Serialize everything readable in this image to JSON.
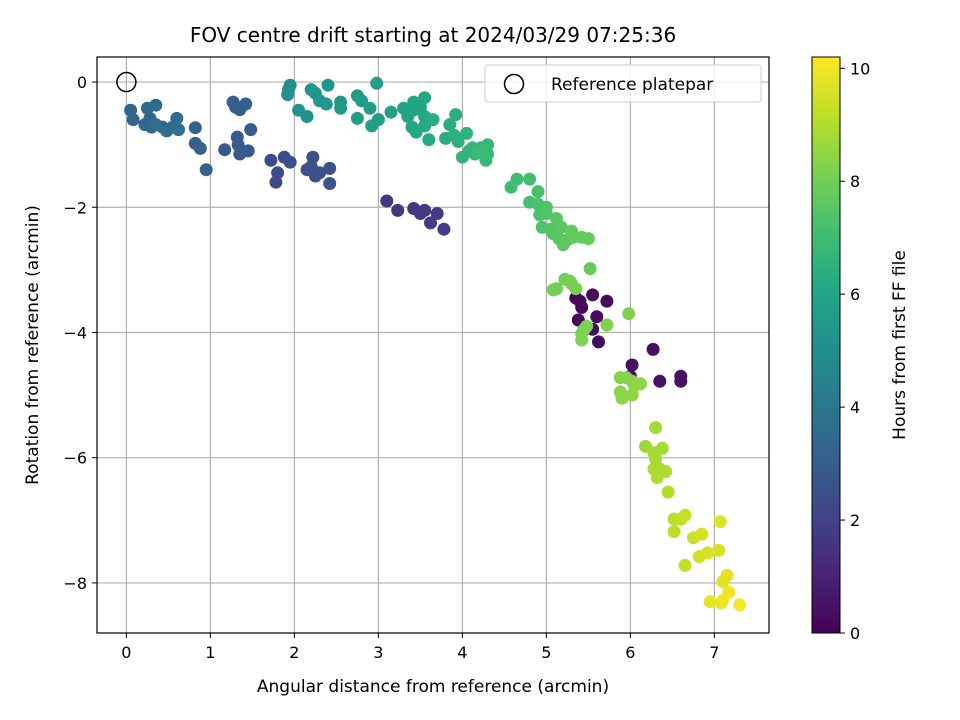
{
  "chart_data": {
    "type": "scatter",
    "title": "FOV centre drift starting at 2024/03/29 07:25:36",
    "xlabel": "Angular distance from reference (arcmin)",
    "ylabel": "Rotation from reference (arcmin)",
    "colorbar_label": "Hours from first FF file",
    "xlim": [
      -0.35,
      7.65
    ],
    "ylim": [
      -8.8,
      0.4
    ],
    "xticks": [
      0,
      1,
      2,
      3,
      4,
      5,
      6,
      7
    ],
    "yticks": [
      0,
      -2,
      -4,
      -6,
      -8
    ],
    "colorbar_ticks": [
      0,
      2,
      4,
      6,
      8,
      10
    ],
    "colorbar_range": [
      0,
      10.2
    ],
    "colormap": "viridis",
    "grid": true,
    "legend": {
      "label": "Reference platepar",
      "placement": "top-right"
    },
    "reference_point": {
      "x": 0.0,
      "y": 0.0
    },
    "points": [
      {
        "x": 5.4,
        "y": -3.5,
        "h": 0.1
      },
      {
        "x": 5.35,
        "y": -3.45,
        "h": 0.15
      },
      {
        "x": 5.42,
        "y": -3.6,
        "h": 0.2
      },
      {
        "x": 5.38,
        "y": -3.8,
        "h": 0.2
      },
      {
        "x": 5.55,
        "y": -3.4,
        "h": 0.25
      },
      {
        "x": 5.6,
        "y": -3.75,
        "h": 0.3
      },
      {
        "x": 5.72,
        "y": -3.5,
        "h": 0.3
      },
      {
        "x": 5.55,
        "y": -3.95,
        "h": 0.35
      },
      {
        "x": 5.62,
        "y": -4.15,
        "h": 0.35
      },
      {
        "x": 6.02,
        "y": -4.52,
        "h": 0.4
      },
      {
        "x": 6.27,
        "y": -4.27,
        "h": 0.4
      },
      {
        "x": 6.35,
        "y": -4.78,
        "h": 0.45
      },
      {
        "x": 6.6,
        "y": -4.7,
        "h": 0.45
      },
      {
        "x": 6.6,
        "y": -4.78,
        "h": 0.5
      },
      {
        "x": 6.0,
        "y": -4.7,
        "h": 0.5
      },
      {
        "x": 3.1,
        "y": -1.9,
        "h": 1.6
      },
      {
        "x": 3.23,
        "y": -2.05,
        "h": 1.65
      },
      {
        "x": 3.42,
        "y": -2.02,
        "h": 1.7
      },
      {
        "x": 3.5,
        "y": -2.1,
        "h": 1.7
      },
      {
        "x": 3.55,
        "y": -2.05,
        "h": 1.75
      },
      {
        "x": 3.62,
        "y": -2.25,
        "h": 1.8
      },
      {
        "x": 3.7,
        "y": -2.1,
        "h": 1.8
      },
      {
        "x": 3.78,
        "y": -2.35,
        "h": 1.85
      },
      {
        "x": 1.72,
        "y": -1.25,
        "h": 2.3
      },
      {
        "x": 1.8,
        "y": -1.45,
        "h": 2.3
      },
      {
        "x": 1.78,
        "y": -1.6,
        "h": 2.35
      },
      {
        "x": 1.88,
        "y": -1.2,
        "h": 2.35
      },
      {
        "x": 1.95,
        "y": -1.28,
        "h": 2.4
      },
      {
        "x": 2.15,
        "y": -1.4,
        "h": 2.4
      },
      {
        "x": 2.22,
        "y": -1.2,
        "h": 2.45
      },
      {
        "x": 2.25,
        "y": -1.5,
        "h": 2.45
      },
      {
        "x": 2.3,
        "y": -1.45,
        "h": 2.5
      },
      {
        "x": 2.42,
        "y": -1.38,
        "h": 2.5
      },
      {
        "x": 2.42,
        "y": -1.62,
        "h": 2.55
      },
      {
        "x": 2.2,
        "y": -1.35,
        "h": 2.55
      },
      {
        "x": 1.17,
        "y": -1.08,
        "h": 2.8
      },
      {
        "x": 1.32,
        "y": -0.88,
        "h": 2.85
      },
      {
        "x": 1.35,
        "y": -1.15,
        "h": 2.9
      },
      {
        "x": 1.45,
        "y": -1.1,
        "h": 2.9
      },
      {
        "x": 1.48,
        "y": -0.76,
        "h": 2.95
      },
      {
        "x": 1.33,
        "y": -1.0,
        "h": 2.95
      },
      {
        "x": 1.3,
        "y": -0.4,
        "h": 3.0
      },
      {
        "x": 1.27,
        "y": -0.32,
        "h": 3.0
      },
      {
        "x": 1.42,
        "y": -0.35,
        "h": 3.05
      },
      {
        "x": 1.35,
        "y": -0.44,
        "h": 3.05
      },
      {
        "x": 0.82,
        "y": -0.98,
        "h": 3.1
      },
      {
        "x": 0.88,
        "y": -1.06,
        "h": 3.15
      },
      {
        "x": 0.95,
        "y": -1.4,
        "h": 3.2
      },
      {
        "x": 0.82,
        "y": -0.73,
        "h": 3.25
      },
      {
        "x": 0.05,
        "y": -0.45,
        "h": 3.3
      },
      {
        "x": 0.08,
        "y": -0.6,
        "h": 3.35
      },
      {
        "x": 0.22,
        "y": -0.68,
        "h": 3.35
      },
      {
        "x": 0.28,
        "y": -0.58,
        "h": 3.4
      },
      {
        "x": 0.3,
        "y": -0.72,
        "h": 3.45
      },
      {
        "x": 0.25,
        "y": -0.42,
        "h": 3.5
      },
      {
        "x": 0.35,
        "y": -0.37,
        "h": 3.5
      },
      {
        "x": 0.43,
        "y": -0.72,
        "h": 3.55
      },
      {
        "x": 0.48,
        "y": -0.78,
        "h": 3.6
      },
      {
        "x": 0.55,
        "y": -0.72,
        "h": 3.6
      },
      {
        "x": 0.6,
        "y": -0.58,
        "h": 3.65
      },
      {
        "x": 0.62,
        "y": -0.76,
        "h": 3.7
      },
      {
        "x": 0.35,
        "y": -0.68,
        "h": 3.7
      },
      {
        "x": 1.95,
        "y": -0.05,
        "h": 5.0
      },
      {
        "x": 1.93,
        "y": -0.12,
        "h": 5.05
      },
      {
        "x": 1.92,
        "y": -0.2,
        "h": 5.1
      },
      {
        "x": 2.05,
        "y": -0.45,
        "h": 5.15
      },
      {
        "x": 2.15,
        "y": -0.55,
        "h": 5.2
      },
      {
        "x": 2.2,
        "y": -0.12,
        "h": 5.25
      },
      {
        "x": 2.25,
        "y": -0.18,
        "h": 5.3
      },
      {
        "x": 2.3,
        "y": -0.3,
        "h": 5.3
      },
      {
        "x": 2.4,
        "y": -0.05,
        "h": 5.35
      },
      {
        "x": 2.38,
        "y": -0.35,
        "h": 5.4
      },
      {
        "x": 2.55,
        "y": -0.32,
        "h": 5.45
      },
      {
        "x": 2.55,
        "y": -0.42,
        "h": 5.5
      },
      {
        "x": 2.75,
        "y": -0.22,
        "h": 5.55
      },
      {
        "x": 2.8,
        "y": -0.3,
        "h": 5.6
      },
      {
        "x": 2.75,
        "y": -0.58,
        "h": 5.6
      },
      {
        "x": 2.9,
        "y": -0.42,
        "h": 5.65
      },
      {
        "x": 2.92,
        "y": -0.7,
        "h": 5.7
      },
      {
        "x": 2.98,
        "y": -0.02,
        "h": 5.75
      },
      {
        "x": 3.0,
        "y": -0.6,
        "h": 5.75
      },
      {
        "x": 3.15,
        "y": -0.48,
        "h": 5.8
      },
      {
        "x": 3.3,
        "y": -0.42,
        "h": 5.85
      },
      {
        "x": 3.35,
        "y": -0.55,
        "h": 5.9
      },
      {
        "x": 3.42,
        "y": -0.32,
        "h": 5.95
      },
      {
        "x": 3.42,
        "y": -0.45,
        "h": 5.95
      },
      {
        "x": 3.5,
        "y": -0.4,
        "h": 6.0
      },
      {
        "x": 3.4,
        "y": -0.72,
        "h": 6.05
      },
      {
        "x": 3.55,
        "y": -0.25,
        "h": 6.1
      },
      {
        "x": 3.55,
        "y": -0.55,
        "h": 6.1
      },
      {
        "x": 3.45,
        "y": -0.8,
        "h": 6.15
      },
      {
        "x": 3.55,
        "y": -0.7,
        "h": 6.2
      },
      {
        "x": 3.6,
        "y": -0.92,
        "h": 6.25
      },
      {
        "x": 3.65,
        "y": -0.6,
        "h": 6.3
      },
      {
        "x": 3.8,
        "y": -0.9,
        "h": 6.35
      },
      {
        "x": 3.85,
        "y": -0.68,
        "h": 6.4
      },
      {
        "x": 3.92,
        "y": -0.52,
        "h": 6.4
      },
      {
        "x": 3.9,
        "y": -0.85,
        "h": 6.45
      },
      {
        "x": 3.95,
        "y": -0.95,
        "h": 6.5
      },
      {
        "x": 4.05,
        "y": -0.82,
        "h": 6.55
      },
      {
        "x": 4.0,
        "y": -1.2,
        "h": 6.6
      },
      {
        "x": 4.08,
        "y": -1.1,
        "h": 6.6
      },
      {
        "x": 4.12,
        "y": -1.05,
        "h": 6.65
      },
      {
        "x": 4.15,
        "y": -1.15,
        "h": 6.7
      },
      {
        "x": 4.22,
        "y": -1.05,
        "h": 6.75
      },
      {
        "x": 4.28,
        "y": -1.25,
        "h": 6.75
      },
      {
        "x": 4.3,
        "y": -1.0,
        "h": 6.8
      },
      {
        "x": 4.3,
        "y": -1.15,
        "h": 6.85
      },
      {
        "x": 4.18,
        "y": -1.12,
        "h": 6.9
      },
      {
        "x": 4.58,
        "y": -1.68,
        "h": 7.0
      },
      {
        "x": 4.65,
        "y": -1.55,
        "h": 7.05
      },
      {
        "x": 4.8,
        "y": -1.55,
        "h": 7.1
      },
      {
        "x": 4.8,
        "y": -1.92,
        "h": 7.15
      },
      {
        "x": 4.9,
        "y": -1.75,
        "h": 7.2
      },
      {
        "x": 4.9,
        "y": -1.95,
        "h": 7.25
      },
      {
        "x": 4.92,
        "y": -2.12,
        "h": 7.3
      },
      {
        "x": 4.95,
        "y": -2.32,
        "h": 7.3
      },
      {
        "x": 5.0,
        "y": -2.0,
        "h": 7.35
      },
      {
        "x": 5.0,
        "y": -2.1,
        "h": 7.4
      },
      {
        "x": 5.05,
        "y": -2.35,
        "h": 7.45
      },
      {
        "x": 5.08,
        "y": -2.42,
        "h": 7.5
      },
      {
        "x": 5.15,
        "y": -2.5,
        "h": 7.5
      },
      {
        "x": 5.12,
        "y": -2.18,
        "h": 7.55
      },
      {
        "x": 5.18,
        "y": -2.32,
        "h": 7.6
      },
      {
        "x": 5.2,
        "y": -2.6,
        "h": 7.6
      },
      {
        "x": 5.25,
        "y": -2.52,
        "h": 7.65
      },
      {
        "x": 5.3,
        "y": -2.38,
        "h": 7.7
      },
      {
        "x": 5.32,
        "y": -2.48,
        "h": 7.7
      },
      {
        "x": 5.42,
        "y": -2.48,
        "h": 7.75
      },
      {
        "x": 5.5,
        "y": -2.5,
        "h": 7.75
      },
      {
        "x": 5.52,
        "y": -2.98,
        "h": 7.8
      },
      {
        "x": 5.08,
        "y": -3.32,
        "h": 8.0
      },
      {
        "x": 5.12,
        "y": -3.3,
        "h": 8.0
      },
      {
        "x": 5.22,
        "y": -3.15,
        "h": 8.05
      },
      {
        "x": 5.28,
        "y": -3.18,
        "h": 8.05
      },
      {
        "x": 5.3,
        "y": -3.22,
        "h": 8.1
      },
      {
        "x": 5.35,
        "y": -3.3,
        "h": 8.1
      },
      {
        "x": 5.42,
        "y": -4.02,
        "h": 8.15
      },
      {
        "x": 5.45,
        "y": -3.95,
        "h": 8.15
      },
      {
        "x": 5.48,
        "y": -3.9,
        "h": 8.2
      },
      {
        "x": 5.42,
        "y": -4.12,
        "h": 8.2
      },
      {
        "x": 5.72,
        "y": -3.88,
        "h": 8.25
      },
      {
        "x": 5.98,
        "y": -3.7,
        "h": 8.25
      },
      {
        "x": 5.88,
        "y": -4.72,
        "h": 8.3
      },
      {
        "x": 5.95,
        "y": -4.72,
        "h": 8.35
      },
      {
        "x": 6.02,
        "y": -4.78,
        "h": 8.35
      },
      {
        "x": 6.12,
        "y": -4.82,
        "h": 8.4
      },
      {
        "x": 5.88,
        "y": -4.95,
        "h": 8.4
      },
      {
        "x": 5.9,
        "y": -5.05,
        "h": 8.45
      },
      {
        "x": 6.02,
        "y": -5.0,
        "h": 8.45
      },
      {
        "x": 6.05,
        "y": -4.85,
        "h": 8.5
      },
      {
        "x": 6.18,
        "y": -5.82,
        "h": 8.7
      },
      {
        "x": 6.3,
        "y": -5.52,
        "h": 8.75
      },
      {
        "x": 6.28,
        "y": -5.92,
        "h": 8.8
      },
      {
        "x": 6.38,
        "y": -5.85,
        "h": 8.8
      },
      {
        "x": 6.3,
        "y": -6.02,
        "h": 8.85
      },
      {
        "x": 6.28,
        "y": -6.18,
        "h": 8.9
      },
      {
        "x": 6.35,
        "y": -6.18,
        "h": 8.9
      },
      {
        "x": 6.32,
        "y": -6.32,
        "h": 8.95
      },
      {
        "x": 6.42,
        "y": -6.22,
        "h": 8.95
      },
      {
        "x": 6.45,
        "y": -6.55,
        "h": 9.0
      },
      {
        "x": 6.52,
        "y": -6.98,
        "h": 9.1
      },
      {
        "x": 6.52,
        "y": -7.18,
        "h": 9.15
      },
      {
        "x": 6.6,
        "y": -6.98,
        "h": 9.2
      },
      {
        "x": 6.65,
        "y": -6.92,
        "h": 9.25
      },
      {
        "x": 6.65,
        "y": -7.72,
        "h": 9.3
      },
      {
        "x": 6.75,
        "y": -7.28,
        "h": 9.4
      },
      {
        "x": 6.82,
        "y": -7.58,
        "h": 9.45
      },
      {
        "x": 6.85,
        "y": -7.22,
        "h": 9.5
      },
      {
        "x": 6.92,
        "y": -7.52,
        "h": 9.55
      },
      {
        "x": 7.05,
        "y": -7.48,
        "h": 9.6
      },
      {
        "x": 7.07,
        "y": -7.02,
        "h": 9.65
      },
      {
        "x": 7.1,
        "y": -7.98,
        "h": 9.7
      },
      {
        "x": 7.15,
        "y": -7.88,
        "h": 9.75
      },
      {
        "x": 6.95,
        "y": -8.3,
        "h": 9.85
      },
      {
        "x": 7.08,
        "y": -8.32,
        "h": 9.9
      },
      {
        "x": 7.1,
        "y": -8.28,
        "h": 9.95
      },
      {
        "x": 7.17,
        "y": -8.15,
        "h": 10.0
      },
      {
        "x": 7.3,
        "y": -8.35,
        "h": 10.1
      }
    ]
  }
}
